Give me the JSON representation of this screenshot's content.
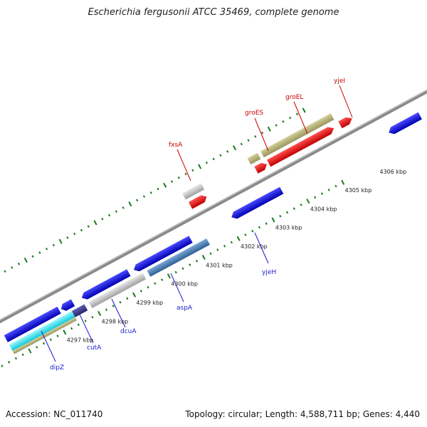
{
  "title": "Escherichia fergusonii ATCC 35469, complete genome",
  "footer": {
    "accession": "Accession: NC_011740",
    "summary": "Topology: circular; Length: 4,588,711 bp; Genes: 4,440"
  },
  "ruler_labels": [
    "4297 kbp",
    "4298 kbp",
    "4299 kbp",
    "4300 kbp",
    "4301 kbp",
    "4302 kbp",
    "4303 kbp",
    "4304 kbp",
    "4305 kbp",
    "4306 kbp"
  ],
  "forward_labels": [
    "fxsA",
    "groES",
    "groEL",
    "yjeI"
  ],
  "reverse_labels": [
    "dipZ",
    "cutA",
    "dcuA",
    "aspA",
    "yjeH"
  ],
  "colors": {
    "forward_red": "#ff0000",
    "forward_grey": "#c8c8c8",
    "forward_olive": "#b8b27a",
    "reverse_blue": "#1010e0",
    "reverse_steel": "#4a7fb5",
    "reverse_cyan": "#30e8f0",
    "reverse_navy": "#3a3a8a",
    "backbone": "#888888",
    "tick": "#1a7a1a",
    "label_red": "#cc0000",
    "label_blue": "#1a1acc"
  }
}
